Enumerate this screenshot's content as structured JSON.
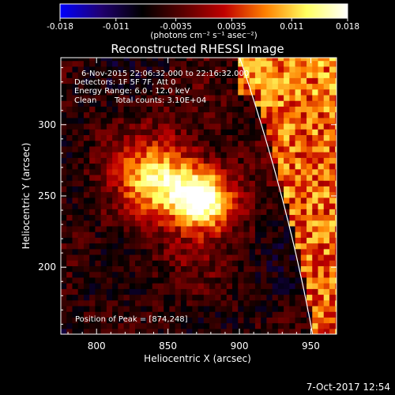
{
  "chart_data": {
    "type": "heatmap",
    "title": "Reconstructed RHESSI Image",
    "xlabel": "Heliocentric X (arcsec)",
    "ylabel": "Heliocentric Y (arcsec)",
    "xlim": [
      775,
      968
    ],
    "ylim": [
      153,
      347
    ],
    "xticks": [
      800,
      850,
      900,
      950
    ],
    "yticks": [
      200,
      250,
      300
    ],
    "colorbar": {
      "range": [
        -0.018,
        0.018
      ],
      "ticks": [
        "-0.018",
        "-0.011",
        "-0.0035",
        "0.0035",
        "0.011",
        "0.018"
      ],
      "tick_values": [
        -0.018,
        -0.011,
        -0.0035,
        0.0035,
        0.011,
        0.018
      ],
      "units": "(photons cm⁻² s⁻¹ asec⁻²)",
      "colormap": [
        "#0000ff",
        "#200070",
        "#000000",
        "#5a0000",
        "#c00000",
        "#ff8000",
        "#ffff60",
        "#ffffff"
      ]
    },
    "annotations": {
      "time_range": "6-Nov-2015 22:06:32.000 to 22:16:32.000",
      "detectors": "Detectors: 1F 5F 7F, Att 0",
      "energy_range": "Energy Range: 6.0 - 12.0 keV",
      "clean_label": "Clean",
      "total_counts": "Total counts: 3.10E+04",
      "peak": "Position of Peak = [874,248]"
    },
    "peak_position": [
      874,
      248
    ],
    "sources": [
      {
        "x": 874,
        "y": 248,
        "peak_value": 0.018
      },
      {
        "x": 842,
        "y": 262,
        "peak_value": 0.011
      }
    ],
    "limb": "solar limb arc from approx (904, 347) to (955, 153)"
  },
  "footer": {
    "date_stamp": "7-Oct-2017 12:54"
  }
}
